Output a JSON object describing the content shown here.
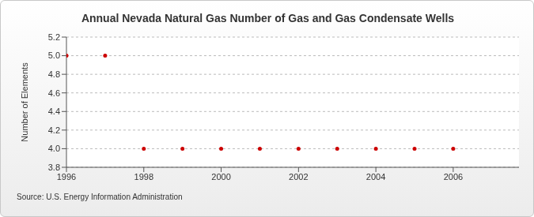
{
  "chart_data": {
    "type": "scatter",
    "title": "Annual Nevada Natural Gas Number of Gas and Gas Condensate Wells",
    "y_label": "Number of Elements",
    "source": "Source: U.S. Energy Information Administration",
    "x": [
      1996,
      1997,
      1998,
      1999,
      2000,
      2001,
      2002,
      2003,
      2004,
      2005,
      2006
    ],
    "values": [
      5,
      5,
      4,
      4,
      4,
      4,
      4,
      4,
      4,
      4,
      4
    ],
    "color": "#cc0000",
    "marker": "circle",
    "xlim": [
      1996,
      2007.7
    ],
    "xticks": [
      1996,
      1998,
      2000,
      2002,
      2004,
      2006
    ],
    "ylim": [
      3.8,
      5.2
    ],
    "yticks": [
      3.8,
      {
        "value": 4.0,
        "label": "4.0"
      },
      4.2,
      4.4,
      4.6,
      4.8,
      {
        "value": 5.0,
        "label": "5.0"
      },
      5.2
    ],
    "grid": true
  }
}
